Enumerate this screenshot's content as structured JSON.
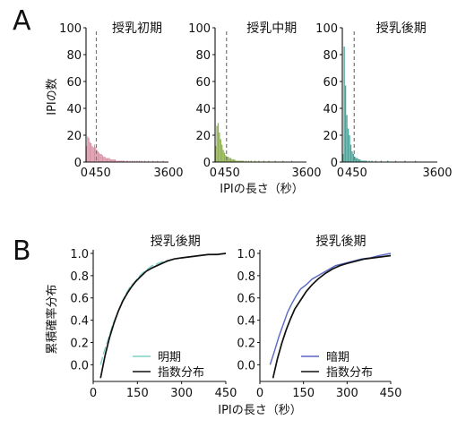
{
  "figure": {
    "panel_a_letter": "A",
    "panel_b_letter": "B"
  },
  "colors": {
    "early": "#d892a6",
    "mid": "#8fb04e",
    "late": "#4aa49a",
    "light": "#7fd1c8",
    "dark": "#5a67c4",
    "exp": "#111111",
    "dashed": "#777777"
  },
  "chart_data": [
    {
      "type": "bar",
      "panel": "A",
      "title": "授乳初期",
      "ylabel": "IPIの数",
      "xlabel": "",
      "x_ticks": [
        "0",
        "450",
        "3600"
      ],
      "y_ticks": [
        "0",
        "20",
        "40",
        "60",
        "80",
        "100"
      ],
      "xlim": [
        0,
        3600
      ],
      "ylim": [
        0,
        100
      ],
      "dashed_line_x": 450,
      "bin_width": 50,
      "values": [
        12,
        19,
        18,
        15,
        14,
        12,
        11,
        13,
        11,
        9,
        8,
        7,
        6,
        6,
        5,
        4,
        4,
        3,
        3,
        3,
        3,
        2,
        2,
        2,
        2,
        2,
        1,
        1,
        1,
        1,
        1,
        1,
        1,
        1,
        0,
        1,
        1,
        0,
        1,
        0,
        1,
        0,
        1,
        0,
        1,
        0,
        1,
        0,
        1,
        0,
        0,
        1,
        0,
        0,
        1,
        0,
        0,
        0,
        1,
        0,
        0,
        0,
        1,
        0,
        0,
        0,
        0,
        1,
        0,
        0,
        0,
        0
      ]
    },
    {
      "type": "bar",
      "panel": "A",
      "title": "授乳中期",
      "xlabel": "IPIの長さ（秒）",
      "x_ticks": [
        "0",
        "450",
        "3600"
      ],
      "y_ticks": [
        "0",
        "20",
        "40",
        "60",
        "80",
        "100"
      ],
      "xlim": [
        0,
        3600
      ],
      "ylim": [
        0,
        100
      ],
      "dashed_line_x": 450,
      "bin_width": 50,
      "values": [
        12,
        27,
        29,
        22,
        17,
        13,
        9,
        7,
        5,
        4,
        4,
        3,
        3,
        2,
        2,
        2,
        1,
        1,
        1,
        1,
        1,
        1,
        1,
        0,
        1,
        0,
        1,
        0,
        1,
        0,
        0,
        1,
        0,
        0,
        1,
        0,
        0,
        0,
        1,
        0,
        0,
        0,
        1,
        0,
        0,
        0,
        0,
        1,
        0,
        0,
        0,
        0,
        0,
        1,
        0,
        0,
        0,
        0,
        0,
        0,
        1,
        0,
        0,
        0,
        0,
        0,
        0,
        0,
        0,
        0,
        0,
        0
      ]
    },
    {
      "type": "bar",
      "panel": "A",
      "title": "授乳後期",
      "xlabel": "",
      "x_ticks": [
        "0",
        "450",
        "3600"
      ],
      "y_ticks": [
        "0",
        "20",
        "40",
        "60",
        "80",
        "100"
      ],
      "xlim": [
        0,
        3600
      ],
      "ylim": [
        0,
        100
      ],
      "dashed_line_x": 450,
      "bin_width": 50,
      "values": [
        6,
        86,
        57,
        35,
        25,
        20,
        13,
        8,
        6,
        4,
        3,
        3,
        2,
        2,
        1,
        1,
        1,
        1,
        1,
        0,
        1,
        0,
        1,
        0,
        0,
        1,
        0,
        0,
        0,
        1,
        0,
        0,
        0,
        0,
        1,
        0,
        0,
        0,
        0,
        0,
        1,
        0,
        0,
        0,
        0,
        0,
        0,
        1,
        0,
        0,
        0,
        0,
        0,
        0,
        0,
        1,
        0,
        0,
        0,
        0,
        0,
        0,
        0,
        0,
        0,
        0,
        0,
        0,
        0,
        0,
        0,
        0
      ]
    },
    {
      "type": "line",
      "panel": "B",
      "title": "授乳後期",
      "xlabel": "IPIの長さ（秒）",
      "ylabel": "累積確率分布",
      "x_ticks": [
        "0",
        "150",
        "300",
        "450"
      ],
      "y_ticks": [
        "0.0",
        "0.2",
        "0.4",
        "0.6",
        "0.8",
        "1.0"
      ],
      "xlim": [
        0,
        450
      ],
      "ylim": [
        -0.15,
        1.0
      ],
      "series": [
        {
          "name": "明期",
          "color_key": "light",
          "x": [
            25,
            35,
            50,
            65,
            80,
            95,
            110,
            125,
            140,
            155,
            170,
            185,
            200,
            220,
            240,
            260,
            280,
            300,
            330,
            360,
            400,
            430,
            450
          ],
          "y": [
            0.0,
            0.1,
            0.22,
            0.35,
            0.45,
            0.55,
            0.63,
            0.7,
            0.74,
            0.79,
            0.83,
            0.86,
            0.89,
            0.91,
            0.93,
            0.94,
            0.95,
            0.96,
            0.97,
            0.98,
            0.99,
            0.995,
            1.0
          ]
        },
        {
          "name": "指数分布",
          "color_key": "exp",
          "x": [
            25,
            40,
            55,
            70,
            85,
            100,
            115,
            130,
            145,
            160,
            180,
            200,
            225,
            250,
            275,
            300,
            330,
            360,
            390,
            420,
            450
          ],
          "y": [
            -0.12,
            0.08,
            0.24,
            0.37,
            0.48,
            0.57,
            0.64,
            0.7,
            0.75,
            0.79,
            0.84,
            0.87,
            0.9,
            0.93,
            0.95,
            0.96,
            0.97,
            0.98,
            0.99,
            0.99,
            1.0
          ]
        }
      ]
    },
    {
      "type": "line",
      "panel": "B",
      "title": "授乳後期",
      "xlabel": "",
      "x_ticks": [
        "0",
        "150",
        "300",
        "450"
      ],
      "y_ticks": [
        "0.0",
        "0.2",
        "0.4",
        "0.6",
        "0.8",
        "1.0"
      ],
      "xlim": [
        0,
        450
      ],
      "ylim": [
        -0.15,
        1.0
      ],
      "series": [
        {
          "name": "暗期",
          "color_key": "dark",
          "x": [
            35,
            50,
            65,
            80,
            95,
            110,
            125,
            140,
            160,
            180,
            200,
            220,
            240,
            260,
            290,
            320,
            350,
            380,
            410,
            430,
            450
          ],
          "y": [
            0.0,
            0.12,
            0.25,
            0.36,
            0.47,
            0.55,
            0.62,
            0.68,
            0.72,
            0.77,
            0.8,
            0.83,
            0.86,
            0.89,
            0.91,
            0.93,
            0.95,
            0.96,
            0.98,
            0.99,
            1.0
          ]
        },
        {
          "name": "指数分布",
          "color_key": "exp",
          "x": [
            45,
            60,
            75,
            90,
            105,
            120,
            140,
            160,
            180,
            200,
            225,
            250,
            275,
            300,
            330,
            360,
            390,
            420,
            450
          ],
          "y": [
            -0.12,
            0.05,
            0.19,
            0.31,
            0.41,
            0.5,
            0.58,
            0.66,
            0.72,
            0.77,
            0.82,
            0.86,
            0.89,
            0.91,
            0.93,
            0.95,
            0.96,
            0.97,
            0.98
          ]
        }
      ]
    }
  ]
}
